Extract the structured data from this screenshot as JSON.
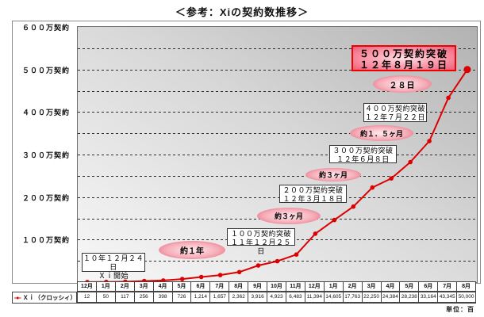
{
  "title": "＜参考：Xiの契約数推移＞",
  "unit_note": "単位：百",
  "legend": {
    "label": "Ｘｉ（クロッシィ）"
  },
  "y_axis": {
    "labels": [
      "６００万契約",
      "５００万契約",
      "４００万契約",
      "３００万契約",
      "２００万契約",
      "１００万契約"
    ]
  },
  "chart_data": {
    "type": "line",
    "series_name": "Xi（クロッシィ）",
    "x": [
      "12月",
      "1月",
      "2月",
      "3月",
      "4月",
      "5月",
      "6月",
      "7月",
      "8月",
      "9月",
      "10月",
      "11月",
      "12月",
      "1月",
      "2月",
      "3月",
      "4月",
      "5月",
      "6月",
      "7月",
      "8月"
    ],
    "values": [
      12,
      50,
      117,
      256,
      398,
      726,
      1214,
      1657,
      2362,
      3916,
      4923,
      6483,
      11394,
      14605,
      17763,
      22250,
      24384,
      28238,
      33164,
      43345,
      50000
    ],
    "value_labels": [
      "12",
      "50",
      "117",
      "256",
      "398",
      "726",
      "1,214",
      "1,657",
      "2,362",
      "3,916",
      "4,923",
      "6,483",
      "11,394",
      "14,605",
      "17,763",
      "22,250",
      "24,384",
      "28,238",
      "33,164",
      "43,345",
      "50,000"
    ],
    "unit": "百 (hundreds of contracts)",
    "ylim": [
      0,
      60000
    ],
    "gridline_step": 5000,
    "grid": "dashed-horizontal",
    "line_color": "#dd0000",
    "legend_position": "bottom-left-table-cell",
    "title": "＜参考：Xiの契約数推移＞"
  },
  "annotations": {
    "milestone_500": {
      "line1": "５００万契約突破",
      "line2": "１２年８月１９日"
    },
    "gap_28d": "２８日",
    "milestone_400": {
      "line1": "４００万契約突破",
      "line2": "１２年７月２２日"
    },
    "gap_1_5m": "約１．５ヶ月",
    "milestone_300": {
      "line1": "３００万契約突破",
      "line2": "１２年６月８日"
    },
    "gap_3m_a": "約３ヶ月",
    "milestone_200": {
      "line1": "２００万契約突破",
      "line2": "１２年３月１８日"
    },
    "gap_3m_b": "約３ヶ月",
    "milestone_100": {
      "line1": "１００万契約突破",
      "line2": "１１年１２月２５日"
    },
    "gap_1y": "約１年",
    "start": {
      "line1": "１０年１２月２４日",
      "line2": "Ｘｉ開始"
    }
  }
}
